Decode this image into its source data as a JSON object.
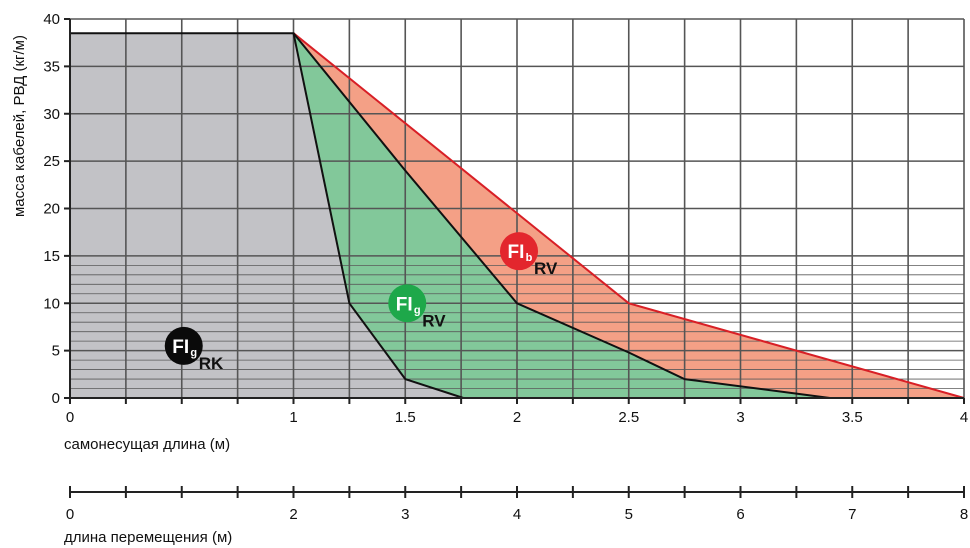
{
  "chart_data": {
    "type": "area",
    "ylabel": "масса кабелей, РВД (кг/м)",
    "xlabel": "самонесущая длина (м)",
    "x2label": "длина перемещения (м)",
    "xlim": [
      0,
      4
    ],
    "ylim": [
      0,
      40
    ],
    "x_ticks": [
      0,
      0.25,
      0.5,
      0.75,
      1,
      1.25,
      1.5,
      1.75,
      2,
      2.25,
      2.5,
      2.75,
      3,
      3.25,
      3.5,
      3.75,
      4
    ],
    "x_tick_labels": [
      "0",
      "1",
      "1.5",
      "2",
      "2.5",
      "3",
      "3.5",
      "4"
    ],
    "x_tick_label_values": [
      0,
      1,
      1.5,
      2,
      2.5,
      3,
      3.5,
      4
    ],
    "y_ticks": [
      0,
      5,
      10,
      15,
      20,
      25,
      30,
      35,
      40
    ],
    "y_tick_labels": [
      "0",
      "5",
      "10",
      "15",
      "20",
      "25",
      "30",
      "35",
      "40"
    ],
    "fine_grid": {
      "from": 0,
      "to": 15,
      "step": 1
    },
    "x2_ticks": [
      0,
      0.25,
      0.5,
      0.75,
      1,
      1.25,
      1.5,
      1.75,
      2,
      2.25,
      2.5,
      2.75,
      3,
      3.25,
      3.5,
      3.75,
      4
    ],
    "x2_tick_labels": [
      "0",
      "2",
      "3",
      "4",
      "5",
      "6",
      "7",
      "8"
    ],
    "x2_tick_label_positions": [
      0,
      1,
      1.5,
      2,
      2.5,
      3,
      3.5,
      4
    ],
    "series": [
      {
        "badge": "FI",
        "badge_sub": "b",
        "label": "RV",
        "color": "#f4a086",
        "stroke": "#d81f26",
        "badge_color": "#e3262d",
        "points": [
          [
            1,
            38.5
          ],
          [
            2.5,
            10
          ],
          [
            4,
            0
          ]
        ],
        "label_at": [
          2,
          15.5
        ]
      },
      {
        "badge": "FI",
        "badge_sub": "g",
        "label": "RV",
        "color": "#82c89a",
        "stroke": "#111111",
        "badge_color": "#1ea84a",
        "points": [
          [
            1,
            38.5
          ],
          [
            1.5,
            24
          ],
          [
            2,
            10
          ],
          [
            2.5,
            4.8
          ],
          [
            2.75,
            2
          ],
          [
            3.4,
            0
          ]
        ],
        "label_at": [
          1.5,
          10
        ]
      },
      {
        "badge": "FI",
        "badge_sub": "g",
        "label": "RK",
        "color": "#c2c2c6",
        "stroke": "#111111",
        "badge_color": "#0a0a0a",
        "points": [
          [
            0,
            38.5
          ],
          [
            1,
            38.5
          ],
          [
            1.25,
            10
          ],
          [
            1.5,
            2
          ],
          [
            1.76,
            0
          ]
        ],
        "label_at": [
          0.5,
          5.5
        ]
      }
    ]
  }
}
